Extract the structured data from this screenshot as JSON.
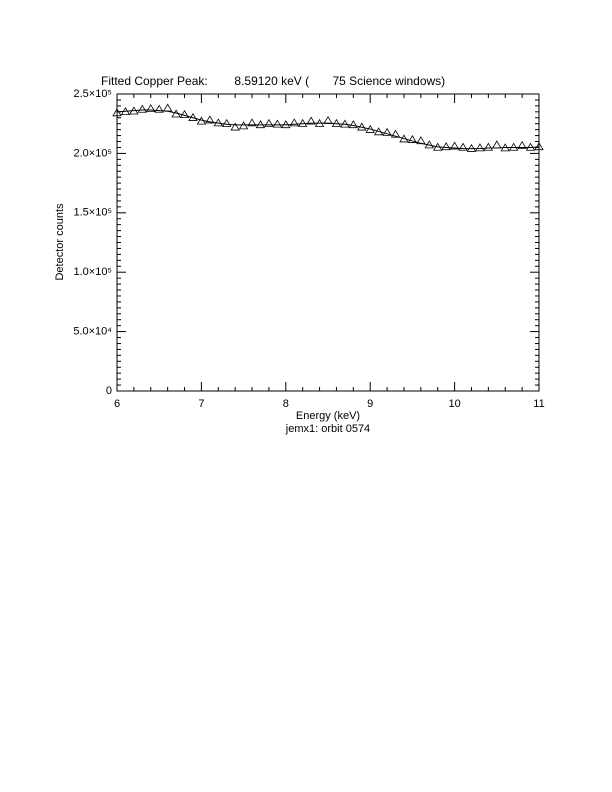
{
  "chart_data": {
    "type": "scatter",
    "title": "Fitted Copper Peak:        8.59120 keV (       75 Science windows)",
    "xlabel": "Energy (keV)",
    "ylabel": "Detector counts",
    "subtitle": "jemx1: orbit 0574",
    "x": [
      6.0,
      6.1,
      6.2,
      6.3,
      6.4,
      6.5,
      6.6,
      6.7,
      6.8,
      6.9,
      7.0,
      7.1,
      7.2,
      7.3,
      7.4,
      7.5,
      7.6,
      7.7,
      7.8,
      7.9,
      8.0,
      8.1,
      8.2,
      8.3,
      8.4,
      8.5,
      8.6,
      8.7,
      8.8,
      8.9,
      9.0,
      9.1,
      9.2,
      9.3,
      9.4,
      9.5,
      9.6,
      9.7,
      9.8,
      9.9,
      10.0,
      10.1,
      10.2,
      10.3,
      10.4,
      10.5,
      10.6,
      10.7,
      10.8,
      10.9,
      11.0
    ],
    "series": [
      {
        "color": "#000000",
        "marker": "triangle",
        "values": [
          234000,
          235000,
          235500,
          237000,
          237500,
          237000,
          238000,
          233000,
          232500,
          230000,
          227000,
          228000,
          225500,
          225000,
          222000,
          223000,
          225500,
          224000,
          225000,
          224500,
          224000,
          225500,
          225000,
          227000,
          225000,
          227500,
          225000,
          224500,
          224000,
          222000,
          220000,
          218000,
          217500,
          216000,
          212000,
          211500,
          210500,
          207000,
          205000,
          205500,
          206000,
          205000,
          204000,
          204500,
          205000,
          207000,
          204500,
          205000,
          206500,
          205000,
          205500
        ]
      },
      {
        "color": "#000000",
        "marker": "line",
        "values": [
          235000,
          235500,
          236000,
          236500,
          236500,
          236000,
          235500,
          234000,
          232000,
          230000,
          228000,
          226500,
          225500,
          224500,
          224000,
          224000,
          224000,
          224000,
          224000,
          224000,
          224000,
          224500,
          225000,
          225500,
          225500,
          225500,
          225000,
          224500,
          223500,
          222000,
          220500,
          218500,
          216500,
          214500,
          212500,
          210500,
          208500,
          207000,
          205500,
          205000,
          204500,
          204000,
          204000,
          204000,
          204500,
          204500,
          205000,
          205000,
          205000,
          205000,
          205500
        ]
      }
    ],
    "xlim": [
      6,
      11
    ],
    "xticks": [
      6,
      7,
      8,
      9,
      10,
      11
    ],
    "ylim": [
      0,
      250000
    ],
    "yticks": [
      {
        "value": 0,
        "label": "0"
      },
      {
        "value": 50000,
        "label": "5.0×10⁴"
      },
      {
        "value": 100000,
        "label": "1.0×10⁵"
      },
      {
        "value": 150000,
        "label": "1.5×10⁵"
      },
      {
        "value": 200000,
        "label": "2.0×10⁵"
      },
      {
        "value": 250000,
        "label": "2.5×10⁵"
      }
    ],
    "x_minor_ticks": 5,
    "y_minor_ticks": 10,
    "grid": false
  }
}
